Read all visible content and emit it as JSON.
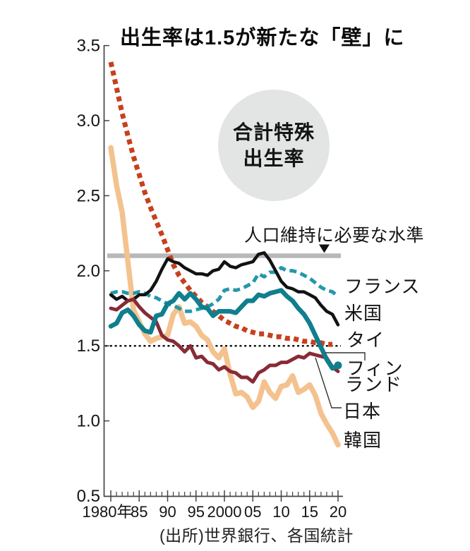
{
  "title": "出生率は1.5が新たな「壁」に",
  "badge": {
    "line1": "合計特殊",
    "line2": "出生率"
  },
  "annotation": {
    "text": "人口維持に必要な水準",
    "points_to_value": 2.1
  },
  "source": "(出所)世界銀行、各国統計",
  "chart_data": {
    "type": "line",
    "title": "出生率は1.5が新たな「壁」に",
    "xlabel": "",
    "ylabel": "合計特殊出生率",
    "xlim": [
      1980,
      2020
    ],
    "ylim": [
      0.5,
      3.5
    ],
    "grid": false,
    "legend_position": "right-edge-labels",
    "y_ticks": [
      3.5,
      3.0,
      2.5,
      2.0,
      1.5,
      1.0,
      0.5
    ],
    "y_tick_labels": [
      "3.5",
      "3.0",
      "2.5",
      "2.0",
      "1.5",
      "1.0",
      "0.5"
    ],
    "x_ticks": [
      1980,
      1985,
      1990,
      1995,
      2000,
      2005,
      2010,
      2015,
      2020
    ],
    "x_tick_labels": [
      "1980年",
      "85",
      "90",
      "95",
      "2000",
      "05",
      "10",
      "15",
      "20"
    ],
    "x_minor_tick_step": 1,
    "reference_lines": [
      {
        "value": 2.1,
        "style": "solid",
        "color": "#b7b9b9",
        "width": 6.5,
        "label": "人口維持に必要な水準"
      },
      {
        "value": 1.5,
        "style": "dotted",
        "color": "#111111",
        "width": 2.5,
        "label": ""
      }
    ],
    "series": [
      {
        "name": "タイ",
        "name_en": "thailand",
        "color": "#c7401d",
        "line_style": "dotted",
        "width": 7,
        "start_year": 1980,
        "values": [
          3.39,
          3.22,
          3.05,
          2.9,
          2.76,
          2.64,
          2.52,
          2.42,
          2.33,
          2.24,
          2.14,
          2.04,
          1.97,
          1.92,
          1.87,
          1.83,
          1.79,
          1.76,
          1.73,
          1.7,
          1.67,
          1.65,
          1.63,
          1.62,
          1.6,
          1.59,
          1.58,
          1.58,
          1.57,
          1.56,
          1.56,
          1.55,
          1.55,
          1.54,
          1.53,
          1.53,
          1.52,
          1.52,
          1.51,
          1.51
        ]
      },
      {
        "name": "韓国",
        "name_en": "south-korea",
        "color": "#f4c28e",
        "line_style": "solid",
        "width": 7.5,
        "start_year": 1980,
        "values": [
          2.82,
          2.57,
          2.39,
          2.06,
          1.74,
          1.66,
          1.58,
          1.53,
          1.55,
          1.56,
          1.57,
          1.71,
          1.76,
          1.65,
          1.66,
          1.63,
          1.57,
          1.54,
          1.46,
          1.42,
          1.48,
          1.31,
          1.18,
          1.19,
          1.16,
          1.09,
          1.13,
          1.26,
          1.19,
          1.15,
          1.23,
          1.24,
          1.3,
          1.19,
          1.21,
          1.24,
          1.17,
          1.05,
          0.98,
          0.92,
          0.84
        ]
      },
      {
        "name": "フランス",
        "name_en": "france",
        "color": "#2597aa",
        "line_style": "dashed",
        "width": 5,
        "start_year": 1980,
        "values": [
          1.85,
          1.86,
          1.86,
          1.85,
          1.85,
          1.86,
          1.85,
          1.83,
          1.82,
          1.8,
          1.78,
          1.77,
          1.75,
          1.73,
          1.73,
          1.74,
          1.75,
          1.76,
          1.78,
          1.81,
          1.87,
          1.88,
          1.87,
          1.88,
          1.9,
          1.92,
          1.98,
          1.96,
          1.99,
          1.99,
          2.02,
          2.0,
          2.0,
          1.99,
          1.97,
          1.95,
          1.92,
          1.89,
          1.87,
          1.86,
          1.83
        ]
      },
      {
        "name": "米国",
        "name_en": "united-states",
        "color": "#121212",
        "line_style": "solid",
        "width": 4.5,
        "start_year": 1980,
        "values": [
          1.84,
          1.81,
          1.83,
          1.8,
          1.81,
          1.84,
          1.84,
          1.87,
          1.93,
          2.01,
          2.08,
          2.06,
          2.05,
          2.02,
          2.0,
          1.98,
          1.98,
          1.97,
          2.0,
          2.01,
          2.06,
          2.03,
          2.02,
          2.04,
          2.05,
          2.06,
          2.11,
          2.12,
          2.07,
          2.0,
          1.93,
          1.89,
          1.88,
          1.86,
          1.86,
          1.84,
          1.82,
          1.77,
          1.73,
          1.71,
          1.64
        ]
      },
      {
        "name": "日本",
        "name_en": "japan",
        "color": "#882b36",
        "line_style": "solid",
        "width": 5,
        "start_year": 1980,
        "values": [
          1.75,
          1.74,
          1.77,
          1.8,
          1.81,
          1.76,
          1.72,
          1.69,
          1.66,
          1.57,
          1.54,
          1.53,
          1.5,
          1.46,
          1.5,
          1.42,
          1.43,
          1.39,
          1.38,
          1.34,
          1.36,
          1.33,
          1.32,
          1.29,
          1.29,
          1.26,
          1.32,
          1.34,
          1.37,
          1.37,
          1.39,
          1.39,
          1.41,
          1.43,
          1.42,
          1.45,
          1.44,
          1.43,
          1.42,
          1.36,
          1.33
        ]
      },
      {
        "name": "フィンランド",
        "name_en": "finland",
        "color": "#0f7f8e",
        "line_style": "solid",
        "width": 6.5,
        "label_lines": [
          "フィン",
          "ランド"
        ],
        "end_marker": true,
        "start_year": 1980,
        "values": [
          1.63,
          1.65,
          1.72,
          1.74,
          1.7,
          1.64,
          1.6,
          1.59,
          1.7,
          1.71,
          1.78,
          1.8,
          1.85,
          1.81,
          1.85,
          1.81,
          1.76,
          1.75,
          1.7,
          1.73,
          1.73,
          1.73,
          1.72,
          1.76,
          1.8,
          1.8,
          1.84,
          1.83,
          1.85,
          1.86,
          1.87,
          1.83,
          1.8,
          1.75,
          1.71,
          1.65,
          1.57,
          1.49,
          1.41,
          1.35,
          1.37
        ]
      }
    ]
  }
}
